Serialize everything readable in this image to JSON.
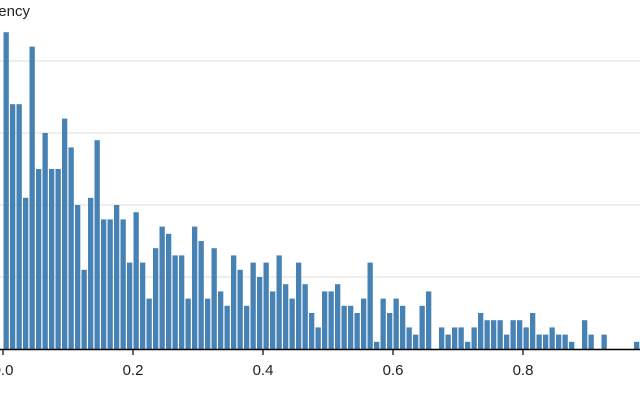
{
  "chart_data": {
    "type": "histogram",
    "ylabel": "Frequency",
    "color": "#4682b4",
    "grid": true,
    "bins": [
      0,
      0.01,
      0.02,
      0.03,
      0.04,
      0.05,
      0.06,
      0.07,
      0.08,
      0.09,
      0.1,
      0.11,
      0.12,
      0.13,
      0.14,
      0.15,
      0.16,
      0.17,
      0.18,
      0.19,
      0.2,
      0.21,
      0.22,
      0.23,
      0.24,
      0.25,
      0.26,
      0.27,
      0.28,
      0.29,
      0.3,
      0.31,
      0.32,
      0.33,
      0.34,
      0.35,
      0.36,
      0.37,
      0.38,
      0.39,
      0.4,
      0.41,
      0.42,
      0.43,
      0.44,
      0.45,
      0.46,
      0.47,
      0.48,
      0.49,
      0.5,
      0.51,
      0.52,
      0.53,
      0.54,
      0.55,
      0.56,
      0.57,
      0.58,
      0.59,
      0.6,
      0.61,
      0.62,
      0.63,
      0.64,
      0.65,
      0.66,
      0.67,
      0.68,
      0.69,
      0.7,
      0.71,
      0.72,
      0.73,
      0.74,
      0.75,
      0.76,
      0.77,
      0.78,
      0.79,
      0.8,
      0.81,
      0.82,
      0.83,
      0.84,
      0.85,
      0.86,
      0.87,
      0.88,
      0.89,
      0.9,
      0.91,
      0.92,
      0.93,
      0.94,
      0.95,
      0.96,
      0.97,
      0.98
    ],
    "values": [
      44,
      34,
      34,
      21,
      42,
      25,
      30,
      25,
      25,
      32,
      28,
      20,
      11,
      21,
      29,
      18,
      18,
      20,
      18,
      12,
      19,
      12,
      7,
      14,
      17,
      16,
      13,
      13,
      7,
      17,
      15,
      7,
      14,
      8,
      6,
      13,
      11,
      6,
      12,
      10,
      12,
      8,
      13,
      9,
      7,
      12,
      9,
      5,
      3,
      8,
      8,
      9,
      6,
      6,
      5,
      7,
      12,
      1,
      7,
      5,
      7,
      6,
      3,
      2,
      6,
      8,
      0,
      3,
      2,
      3,
      3,
      1,
      3,
      5,
      4,
      4,
      4,
      2,
      4,
      4,
      3,
      5,
      2,
      2,
      3,
      2,
      2,
      1,
      0,
      4,
      2,
      0,
      2,
      0,
      0,
      0,
      0,
      1
    ],
    "xlim": [
      0,
      0.98
    ],
    "xticks": [
      {
        "value": 0,
        "label": "0.0"
      },
      0.2,
      0.4,
      0.6,
      0.8
    ],
    "ylim": [
      0,
      45
    ],
    "yticks": [
      0,
      10,
      20,
      30,
      40
    ]
  }
}
